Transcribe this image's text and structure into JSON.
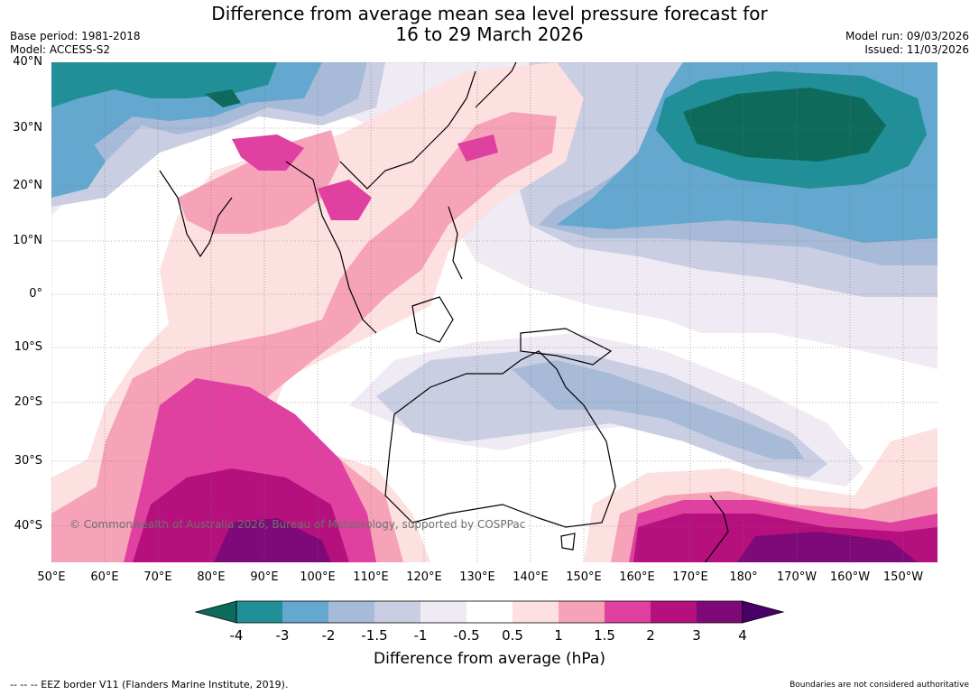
{
  "title_line1": "Difference from average mean sea level pressure forecast for",
  "title_line2": "16 to 29 March 2026",
  "base_period": "Base period: 1981-2018",
  "model": "Model: ACCESS-S2",
  "model_run": "Model run: 09/03/2026",
  "issued": "Issued: 11/03/2026",
  "lat_labels": [
    "40°N",
    "30°N",
    "20°N",
    "10°N",
    "0°",
    "10°S",
    "20°S",
    "30°S",
    "40°S"
  ],
  "lon_labels": [
    "50°E",
    "60°E",
    "70°E",
    "80°E",
    "90°E",
    "100°E",
    "110°E",
    "120°E",
    "130°E",
    "140°E",
    "150°E",
    "160°E",
    "170°E",
    "180°",
    "170°W",
    "160°W",
    "150°W"
  ],
  "colorbar": {
    "ticks": [
      "-4",
      "-3",
      "-2",
      "-1.5",
      "-1",
      "-0.5",
      "0.5",
      "1",
      "1.5",
      "2",
      "3",
      "4"
    ],
    "colors": [
      "#0e6b5c",
      "#218f98",
      "#64a8cf",
      "#a7bad8",
      "#cacee3",
      "#efeaf3",
      "#ffffff",
      "#fde0e0",
      "#f6a2b9",
      "#e040a0",
      "#b5107d",
      "#7d0a78",
      "#4a0068"
    ],
    "title": "Difference from average (hPa)"
  },
  "copyright": "© Commonwealth of Australia 2026, Bureau of Meteorology, supported by COSPPac",
  "footer_left": "--  --  -- EEZ border V11 (Flanders Marine Institute, 2019).",
  "footer_right": "Boundaries are not considered authoritative"
}
